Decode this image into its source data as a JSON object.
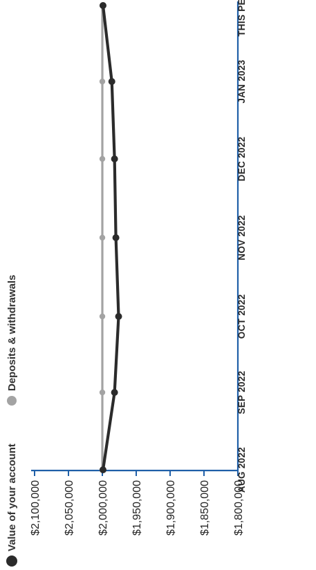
{
  "chart_data": {
    "type": "line",
    "title": "",
    "xlabel": "",
    "ylabel": "",
    "categories": [
      "AUG 2022",
      "SEP 2022",
      "OCT 2022",
      "NOV 2022",
      "DEC 2022",
      "JAN 2023",
      "THIS PERIOD"
    ],
    "yticks": [
      "$2,100,000",
      "$2,050,000",
      "$2,000,000",
      "$1,950,000",
      "$1,900,000",
      "$1,850,000",
      "$1,800,000"
    ],
    "ylim": [
      1800000,
      2100000
    ],
    "legend_position": "top-left",
    "series": [
      {
        "name": "Value of your account",
        "color": "#2b2b2b",
        "values": [
          1999000,
          1982000,
          1976000,
          1980000,
          1982000,
          1986000,
          1999000
        ]
      },
      {
        "name": "Deposits & withdrawals",
        "color": "#a3a3a3",
        "values": [
          2000000,
          2000000,
          2000000,
          2000000,
          2000000,
          2000000,
          2000000
        ]
      }
    ],
    "axis_color": "#1f5fa8"
  }
}
